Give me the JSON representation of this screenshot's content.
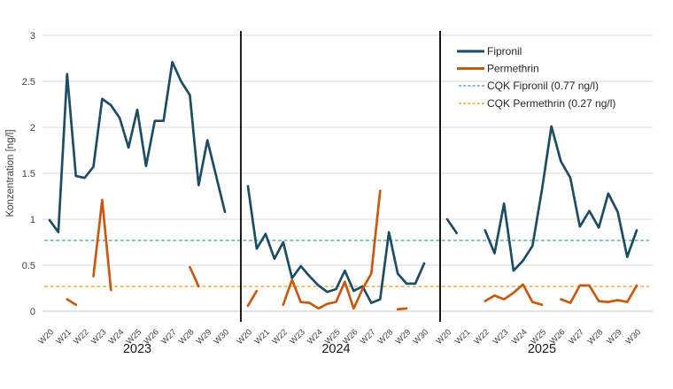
{
  "chart_data": {
    "type": "line",
    "title": "",
    "ylabel": "Konzentration [ng/l]",
    "ylim": [
      0,
      3
    ],
    "yticks": [
      0,
      0.5,
      1,
      1.5,
      2,
      2.5,
      3
    ],
    "grid": true,
    "legend_position": "top-right",
    "week_labels": [
      "W20",
      "W21",
      "W22",
      "W23",
      "W24",
      "W25",
      "W26",
      "W27",
      "W28",
      "W29",
      "W30"
    ],
    "samples_per_week": 2,
    "panels": [
      {
        "year": "2023",
        "fipronil": [
          0.99,
          0.86,
          2.58,
          1.47,
          1.45,
          1.57,
          2.31,
          2.24,
          2.1,
          1.78,
          2.19,
          1.58,
          2.07,
          2.07,
          2.71,
          2.5,
          2.35,
          1.37,
          1.86,
          1.47,
          1.08
        ],
        "permethrin": [
          null,
          null,
          0.13,
          0.07,
          null,
          0.38,
          1.21,
          0.23,
          null,
          null,
          null,
          null,
          null,
          null,
          null,
          null,
          0.48,
          0.27,
          null,
          null,
          null
        ]
      },
      {
        "year": "2024",
        "fipronil": [
          1.36,
          0.68,
          0.84,
          0.57,
          0.75,
          0.36,
          0.49,
          0.38,
          0.28,
          0.21,
          0.24,
          0.44,
          0.22,
          0.27,
          0.09,
          0.13,
          0.86,
          0.41,
          0.3,
          0.3,
          0.52
        ],
        "permethrin": [
          0.06,
          0.22,
          null,
          null,
          0.07,
          0.34,
          0.1,
          0.09,
          0.03,
          0.08,
          0.1,
          0.32,
          0.03,
          0.24,
          0.41,
          1.31,
          null,
          0.02,
          0.03,
          null,
          null
        ]
      },
      {
        "year": "2025",
        "fipronil": [
          1.0,
          0.85,
          null,
          null,
          0.88,
          0.63,
          1.17,
          0.44,
          0.55,
          0.71,
          1.32,
          2.01,
          1.63,
          1.45,
          0.92,
          1.09,
          0.91,
          1.28,
          1.08,
          0.59,
          0.88
        ],
        "permethrin": [
          null,
          null,
          null,
          null,
          0.11,
          0.17,
          0.13,
          0.2,
          0.29,
          0.1,
          0.07,
          null,
          0.13,
          0.09,
          0.28,
          0.28,
          0.11,
          0.1,
          0.12,
          0.1,
          0.28
        ]
      }
    ],
    "legend": [
      {
        "label": "Fipronil",
        "color": "#1c4d62",
        "dash": false
      },
      {
        "label": "Permethrin",
        "color": "#c75a11",
        "dash": false
      },
      {
        "label": "CQK Fipronil (0.77 ng/l)",
        "color": "#55a5c5",
        "dash": true,
        "value": 0.77
      },
      {
        "label": "CQK Permethrin (0.27 ng/l)",
        "color": "#e9a83c",
        "dash": true,
        "value": 0.27
      }
    ],
    "colors": {
      "grid": "#d9d9d9",
      "zero_line": "#c8c8c8",
      "axis_text": "#404040",
      "year_text": "#171717",
      "legend_text": "#262626",
      "separator": "#000000",
      "background": "#ffffff"
    }
  }
}
